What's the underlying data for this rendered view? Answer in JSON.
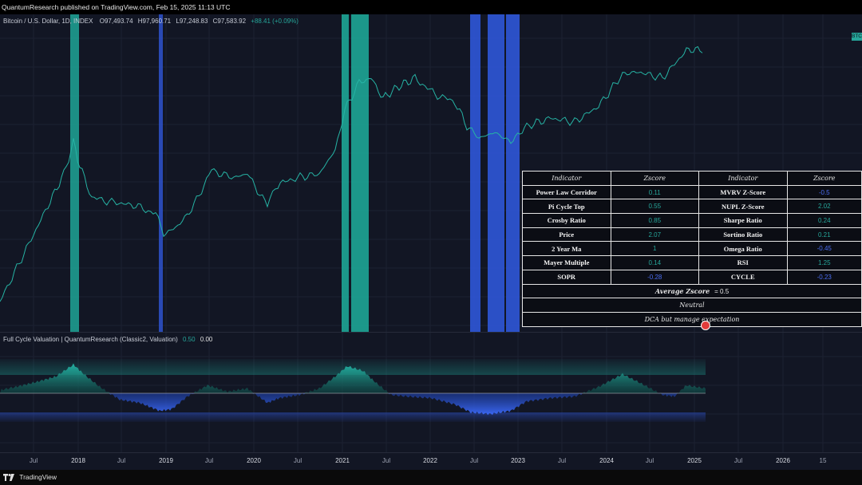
{
  "topbar": {
    "text": "QuantumResearch published on TradingView.com, Feb 15, 2025 11:13 UTC"
  },
  "chart": {
    "symbol": "Bitcoin / U.S. Dollar, 1D, INDEX",
    "open": "O97,493.74",
    "high": "H97,960.71",
    "low": "L97,248.83",
    "close": "C97,583.92",
    "change": "+88.41 (+0.09%)",
    "price_tag": "BTC",
    "colors": {
      "teal": "#26a69a",
      "blue": "#2962ff",
      "background": "#121624"
    }
  },
  "indicator": {
    "name": "Full Cycle Valuation | QuantumResearch (Classic2, Valuation)",
    "value1": "0.50",
    "value2": "0.00"
  },
  "table": {
    "headers": [
      "Indicator",
      "Zscore",
      "Indicator",
      "Zscore"
    ],
    "rows": [
      [
        "Power Law Corridor",
        "0.11",
        "MVRV Z-Score",
        "-0.5"
      ],
      [
        "Pi Cycle Top",
        "0.55",
        "NUPL Z-Score",
        "2.02"
      ],
      [
        "Crosby Ratio",
        "0.85",
        "Sharpe Ratio",
        "0.24"
      ],
      [
        "Price",
        "2.07",
        "Sortino Ratio",
        "0.21"
      ],
      [
        "2 Year Ma",
        "1",
        "Omega Ratio",
        "-0.45"
      ],
      [
        "Mayer Multiple",
        "0.14",
        "RSI",
        "1.25"
      ],
      [
        "SOPR",
        "-0.28",
        "CYCLE",
        "-0.23"
      ]
    ],
    "average_label": "Average Zscore",
    "average_value": "= 0.5",
    "state": "Neutral",
    "advice": "DCA but manage expectation"
  },
  "xaxis": {
    "ticks": [
      "Jul",
      "2018",
      "Jul",
      "2019",
      "Jul",
      "2020",
      "Jul",
      "2021",
      "Jul",
      "2022",
      "Jul",
      "2023",
      "Jul",
      "2024",
      "Jul",
      "2025",
      "Jul",
      "2026",
      "15"
    ]
  },
  "footer": {
    "brand": "TradingView"
  }
}
